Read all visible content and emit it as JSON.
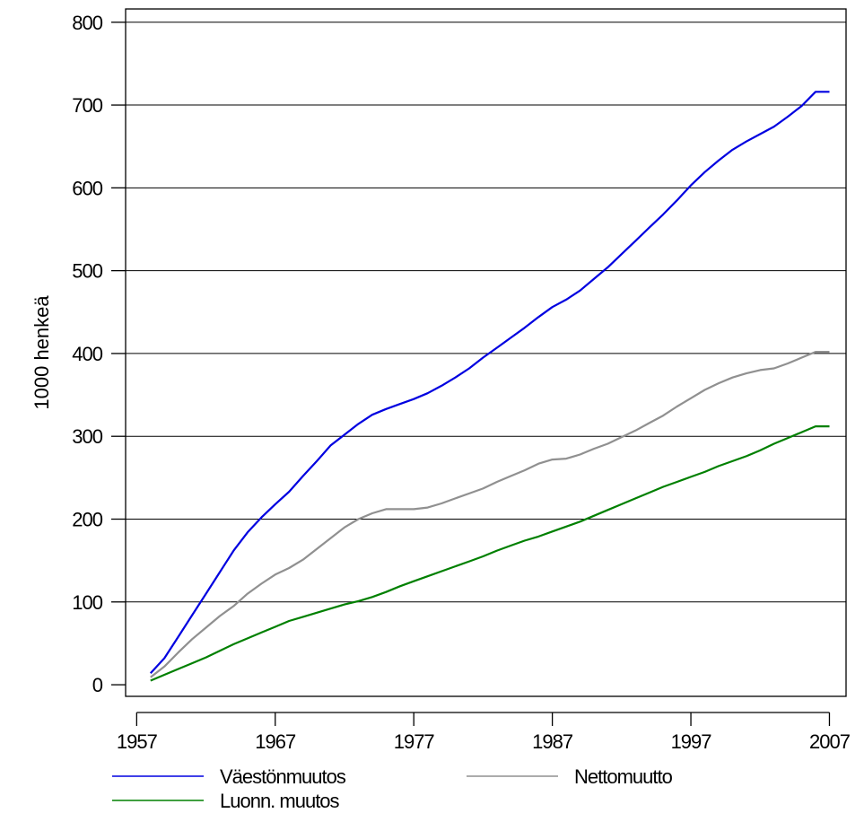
{
  "chart_data": {
    "type": "line",
    "title": "",
    "xlabel": "",
    "ylabel": "1000 henkeä",
    "xlim": [
      1956.2,
      2008.2
    ],
    "ylim": [
      -14,
      816
    ],
    "x_ticks": [
      1957,
      1967,
      1977,
      1987,
      1997,
      2007
    ],
    "y_ticks": [
      0,
      100,
      200,
      300,
      400,
      500,
      600,
      700,
      800
    ],
    "grid": "horizontal",
    "legend_position": "bottom",
    "x": [
      1958,
      1959,
      1960,
      1961,
      1962,
      1963,
      1964,
      1965,
      1966,
      1967,
      1968,
      1969,
      1970,
      1971,
      1972,
      1973,
      1974,
      1975,
      1976,
      1977,
      1978,
      1979,
      1980,
      1981,
      1982,
      1983,
      1984,
      1985,
      1986,
      1987,
      1988,
      1989,
      1990,
      1991,
      1992,
      1993,
      1994,
      1995,
      1996,
      1997,
      1998,
      1999,
      2000,
      2001,
      2002,
      2003,
      2004,
      2005,
      2006,
      2007
    ],
    "series": [
      {
        "name": "Väestönmuutos",
        "color": "#0000e0",
        "values": [
          14,
          32,
          58,
          84,
          110,
          136,
          162,
          184,
          202,
          218,
          233,
          252,
          270,
          289,
          302,
          315,
          326,
          333,
          339,
          345,
          352,
          361,
          371,
          382,
          395,
          407,
          419,
          431,
          444,
          456,
          465,
          476,
          490,
          504,
          520,
          536,
          552,
          568,
          585,
          603,
          619,
          633,
          646,
          656,
          665,
          674,
          686,
          699,
          716,
          716
        ]
      },
      {
        "name": "Nettomuutto",
        "color": "#909090",
        "values": [
          9,
          22,
          39,
          55,
          69,
          83,
          95,
          110,
          122,
          133,
          141,
          151,
          164,
          177,
          190,
          200,
          207,
          212,
          212,
          212,
          214,
          219,
          225,
          231,
          237,
          245,
          252,
          259,
          267,
          272,
          273,
          278,
          285,
          291,
          299,
          307,
          316,
          325,
          336,
          346,
          356,
          364,
          371,
          376,
          380,
          382,
          388,
          395,
          402,
          402
        ]
      },
      {
        "name": "Luonn. muutos",
        "color": "#008000",
        "values": [
          5,
          12,
          19,
          26,
          33,
          41,
          49,
          56,
          63,
          70,
          77,
          82,
          87,
          92,
          97,
          101,
          106,
          112,
          119,
          125,
          131,
          137,
          143,
          149,
          155,
          162,
          168,
          174,
          179,
          185,
          191,
          197,
          204,
          211,
          218,
          225,
          232,
          239,
          245,
          251,
          257,
          264,
          270,
          276,
          283,
          291,
          298,
          305,
          312,
          312
        ]
      }
    ]
  }
}
